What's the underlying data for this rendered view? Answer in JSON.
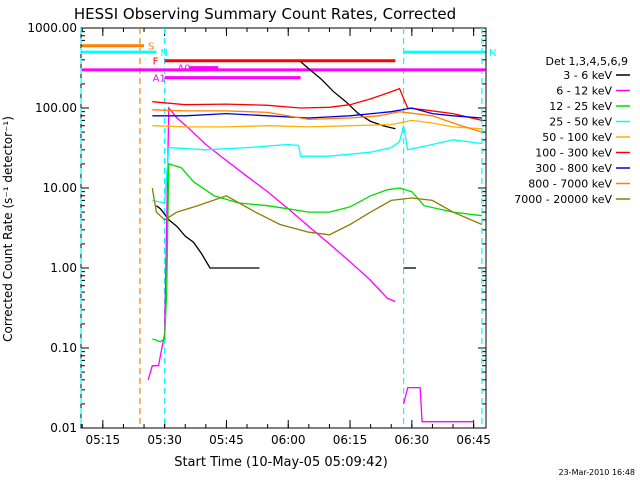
{
  "chart_data": {
    "type": "line",
    "title": "HESSI Observing Summary Count Rates, Corrected",
    "xlabel": "Start Time (10-May-05 05:09:42)",
    "ylabel": "Corrected Count Rate (s⁻¹ detector⁻¹)",
    "x_range": [
      "05:09:42",
      "06:48:00"
    ],
    "ylim": [
      0.01,
      1000
    ],
    "y_scale": "log",
    "x_ticks": [
      "05:15",
      "05:30",
      "05:45",
      "06:00",
      "06:15",
      "06:30",
      "06:45"
    ],
    "y_ticks": [
      "0.01",
      "0.10",
      "1.00",
      "10.00",
      "100.00",
      "1000.00"
    ],
    "grid": false,
    "legend_position": "right",
    "legend_title": "Det 1,3,4,5,6,9",
    "timestamp": "23-Mar-2010 16:48",
    "series": [
      {
        "name": "3 - 6 keV",
        "color": "#000000",
        "points": [
          [
            "05:28:00",
            6
          ],
          [
            "05:29:00",
            5.5
          ],
          [
            "05:31:00",
            4
          ],
          [
            "05:33:00",
            3.3
          ],
          [
            "05:35:00",
            2.5
          ],
          [
            "05:37:00",
            2.1
          ],
          [
            "05:39:00",
            1.5
          ],
          [
            "05:41:00",
            1.0
          ],
          [
            "05:53:00",
            1.0
          ],
          null,
          [
            "06:03:00",
            380
          ],
          [
            "06:05:00",
            310
          ],
          [
            "06:08:00",
            230
          ],
          [
            "06:11:00",
            160
          ],
          [
            "06:14:00",
            120
          ],
          [
            "06:17:00",
            85
          ],
          [
            "06:20:00",
            68
          ],
          [
            "06:23:00",
            60
          ],
          [
            "06:26:00",
            55
          ],
          null,
          [
            "06:28:00",
            1.0
          ],
          [
            "06:31:00",
            1.0
          ]
        ]
      },
      {
        "name": "6 - 12 keV",
        "color": "#ff00ff",
        "points": [
          [
            "05:26:00",
            0.04
          ],
          [
            "05:27:00",
            0.06
          ],
          [
            "05:28:30",
            0.06
          ],
          [
            "05:30:00",
            0.15
          ],
          [
            "05:31:00",
            100
          ],
          [
            "05:33:00",
            75
          ],
          [
            "05:36:00",
            55
          ],
          [
            "05:40:00",
            35
          ],
          [
            "05:45:00",
            22
          ],
          [
            "05:50:00",
            14
          ],
          [
            "05:55:00",
            9
          ],
          [
            "06:00:00",
            5.5
          ],
          [
            "06:05:00",
            3.3
          ],
          [
            "06:10:00",
            2.0
          ],
          [
            "06:15:00",
            1.2
          ],
          [
            "06:20:00",
            0.7
          ],
          [
            "06:24:00",
            0.42
          ],
          [
            "06:26:00",
            0.38
          ],
          null,
          [
            "06:28:00",
            0.02
          ],
          [
            "06:29:00",
            0.032
          ],
          [
            "06:32:00",
            0.032
          ],
          [
            "06:32:30",
            0.012
          ],
          [
            "06:45:00",
            0.012
          ]
        ]
      },
      {
        "name": "12 - 25 keV",
        "color": "#00dd00",
        "points": [
          [
            "05:27:00",
            0.13
          ],
          [
            "05:29:00",
            0.12
          ],
          [
            "05:30:00",
            0.13
          ],
          [
            "05:30:30",
            0.5
          ],
          [
            "05:31:00",
            20
          ],
          [
            "05:34:00",
            18
          ],
          [
            "05:37:00",
            12
          ],
          [
            "05:42:00",
            8
          ],
          [
            "05:48:00",
            6.5
          ],
          [
            "05:55:00",
            6
          ],
          [
            "06:00:00",
            5.5
          ],
          [
            "06:05:00",
            5.0
          ],
          [
            "06:10:00",
            5.0
          ],
          [
            "06:15:00",
            5.8
          ],
          [
            "06:20:00",
            8
          ],
          [
            "06:24:00",
            9.5
          ],
          [
            "06:27:00",
            10
          ],
          [
            "06:30:00",
            9
          ],
          [
            "06:33:00",
            6
          ],
          [
            "06:40:00",
            5
          ],
          [
            "06:47:00",
            4.5
          ]
        ]
      },
      {
        "name": "25 - 50 keV",
        "color": "#00ffff",
        "points": [
          [
            "05:27:00",
            7
          ],
          [
            "05:30:00",
            6.5
          ],
          [
            "05:31:00",
            32
          ],
          [
            "05:40:00",
            30
          ],
          [
            "05:50:00",
            32
          ],
          [
            "06:00:00",
            35
          ],
          [
            "06:02:30",
            34
          ],
          [
            "06:03:00",
            25
          ],
          [
            "06:10:00",
            25
          ],
          [
            "06:20:00",
            28
          ],
          [
            "06:25:00",
            32
          ],
          [
            "06:27:00",
            38
          ],
          [
            "06:28:00",
            60
          ],
          [
            "06:29:00",
            30
          ],
          [
            "06:35:00",
            35
          ],
          [
            "06:40:00",
            40
          ],
          [
            "06:47:00",
            36
          ]
        ]
      },
      {
        "name": "50 - 100 keV",
        "color": "#ffb000",
        "points": [
          [
            "05:27:00",
            60
          ],
          [
            "05:35:00",
            58
          ],
          [
            "05:45:00",
            58
          ],
          [
            "05:55:00",
            60
          ],
          [
            "06:05:00",
            58
          ],
          [
            "06:15:00",
            60
          ],
          [
            "06:25:00",
            62
          ],
          [
            "06:30:00",
            70
          ],
          [
            "06:35:00",
            65
          ],
          [
            "06:40:00",
            58
          ],
          [
            "06:47:00",
            55
          ]
        ]
      },
      {
        "name": "100 - 300 keV",
        "color": "#ff0000",
        "points": [
          [
            "05:27:00",
            120
          ],
          [
            "05:35:00",
            110
          ],
          [
            "05:45:00",
            112
          ],
          [
            "05:55:00",
            108
          ],
          [
            "06:03:00",
            100
          ],
          [
            "06:10:00",
            102
          ],
          [
            "06:15:00",
            110
          ],
          [
            "06:20:00",
            130
          ],
          [
            "06:25:00",
            160
          ],
          [
            "06:27:00",
            175
          ],
          [
            "06:29:00",
            100
          ],
          [
            "06:33:00",
            95
          ],
          [
            "06:40:00",
            85
          ],
          [
            "06:47:00",
            70
          ]
        ]
      },
      {
        "name": "300 - 800 keV",
        "color": "#0000dd",
        "points": [
          [
            "05:27:00",
            80
          ],
          [
            "05:35:00",
            80
          ],
          [
            "05:45:00",
            85
          ],
          [
            "05:55:00",
            80
          ],
          [
            "06:05:00",
            75
          ],
          [
            "06:15:00",
            80
          ],
          [
            "06:25:00",
            90
          ],
          [
            "06:30:00",
            100
          ],
          [
            "06:35:00",
            85
          ],
          [
            "06:40:00",
            80
          ],
          [
            "06:47:00",
            75
          ]
        ]
      },
      {
        "name": "800 - 7000 keV",
        "color": "#ff8000",
        "points": [
          [
            "05:27:00",
            95
          ],
          [
            "05:35:00",
            92
          ],
          [
            "05:45:00",
            92
          ],
          [
            "05:55:00",
            88
          ],
          [
            "06:05:00",
            72
          ],
          [
            "06:15:00",
            75
          ],
          [
            "06:22:00",
            80
          ],
          [
            "06:27:00",
            90
          ],
          [
            "06:35:00",
            80
          ],
          [
            "06:42:00",
            60
          ],
          [
            "06:47:00",
            50
          ]
        ]
      },
      {
        "name": "7000 - 20000 keV",
        "color": "#8b7d00",
        "points": [
          [
            "05:27:00",
            10
          ],
          [
            "05:28:00",
            5
          ],
          [
            "05:30:00",
            4
          ],
          [
            "05:33:00",
            5
          ],
          [
            "05:38:00",
            6
          ],
          [
            "05:45:00",
            8
          ],
          [
            "05:52:00",
            5
          ],
          [
            "05:58:00",
            3.5
          ],
          [
            "06:05:00",
            2.8
          ],
          [
            "06:10:00",
            2.6
          ],
          [
            "06:15:00",
            3.5
          ],
          [
            "06:20:00",
            5
          ],
          [
            "06:25:00",
            7
          ],
          [
            "06:30:00",
            7.5
          ],
          [
            "06:35:00",
            7
          ],
          [
            "06:40:00",
            5
          ],
          [
            "06:47:00",
            3.5
          ]
        ]
      }
    ],
    "flag_bars": [
      {
        "label": "S",
        "color": "#ff8000",
        "level": 600,
        "start": "05:09:42",
        "end": "05:25:00"
      },
      {
        "label": "N",
        "color": "#00ffff",
        "level": 500,
        "start": "05:09:42",
        "end": "05:28:00"
      },
      {
        "label": "N",
        "color": "#00ffff",
        "level": 500,
        "start": "06:28:00",
        "end": "06:48:00"
      },
      {
        "label": "F",
        "color": "#ff0000",
        "level": 390,
        "start": "05:30:00",
        "end": "06:26:00"
      },
      {
        "label": "A0",
        "color": "#ff00ff",
        "level": 320,
        "start": "05:36:00",
        "end": "05:43:00"
      },
      {
        "label": "A1",
        "color": "#ff00ff",
        "level": 240,
        "start": "05:30:00",
        "end": "06:03:00"
      },
      {
        "label": "",
        "color": "#ff00ff",
        "level": 300,
        "start": "05:09:42",
        "end": "06:48:00"
      }
    ],
    "vertical_markers": [
      {
        "time": "05:09:42",
        "color": "#00ffff",
        "style": "dashed"
      },
      {
        "time": "05:24:00",
        "color": "#ff8000",
        "style": "dashed"
      },
      {
        "time": "05:30:00",
        "color": "#00ffff",
        "style": "dashed"
      },
      {
        "time": "06:28:00",
        "color": "#00ffff",
        "style": "dashed"
      },
      {
        "time": "06:47:00",
        "color": "#00ffff",
        "style": "dashed"
      }
    ]
  }
}
